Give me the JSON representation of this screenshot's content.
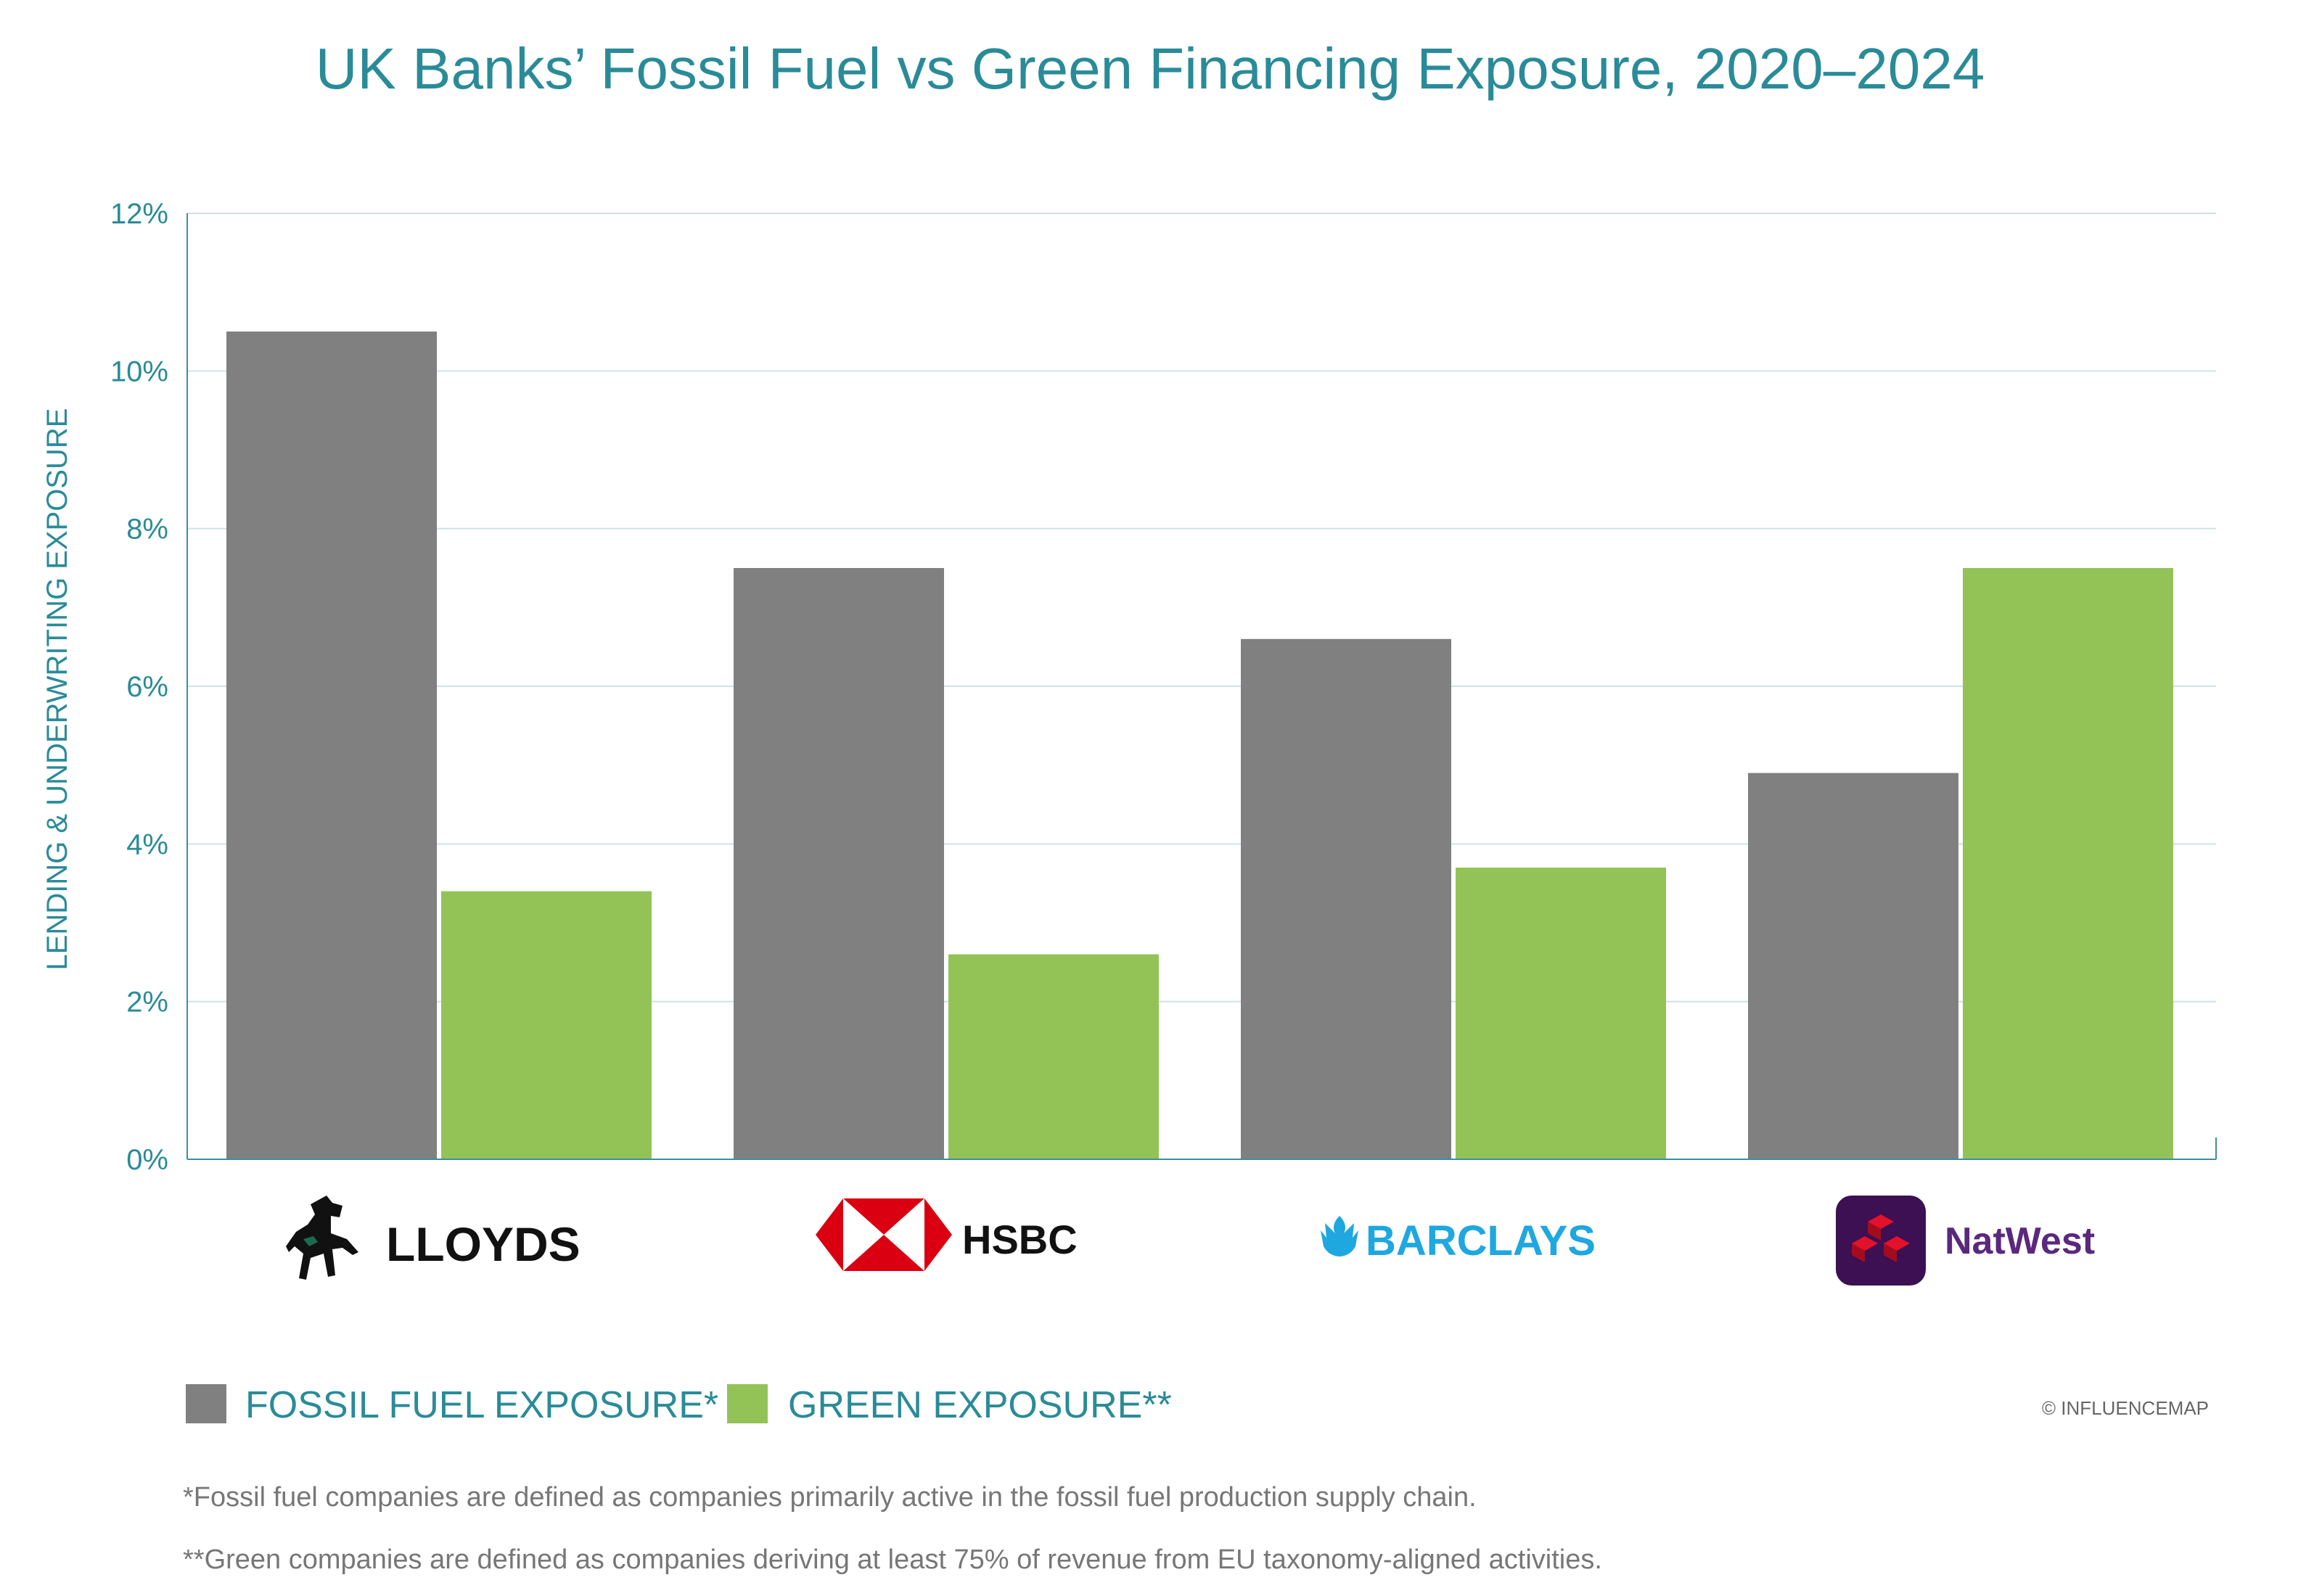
{
  "chart_data": {
    "type": "bar",
    "title": "UK Banks’ Fossil Fuel vs Green Financing Exposure, 2020–2024",
    "ylabel": "LENDING & UNDERWRITING EXPOSURE",
    "xlabel": "",
    "categories": [
      "LLOYDS",
      "HSBC",
      "BARCLAYS",
      "NatWest"
    ],
    "series": [
      {
        "name": "FOSSIL FUEL EXPOSURE*",
        "values": [
          10.5,
          7.5,
          6.6,
          4.9
        ],
        "color": "#808080"
      },
      {
        "name": "GREEN EXPOSURE**",
        "values": [
          3.4,
          2.6,
          3.7,
          7.5
        ],
        "color": "#93c356"
      }
    ],
    "ylim": [
      0,
      12
    ],
    "yticks": [
      "0%",
      "2%",
      "4%",
      "6%",
      "8%",
      "10%",
      "12%"
    ],
    "ytick_values": [
      0,
      2,
      4,
      6,
      8,
      10,
      12
    ],
    "grid": true,
    "legend_position": "bottom-left",
    "copyright": "© INFLUENCEMAP",
    "footnotes": [
      "*Fossil fuel companies are defined as companies primarily active in the fossil fuel production supply chain.",
      "**Green companies are defined as companies deriving at least 75% of revenue from EU taxonomy-aligned activities."
    ],
    "colors": {
      "accent": "#2a8b98",
      "grid": "#cde3e6",
      "axis": "#3a8fa0"
    },
    "logos": [
      {
        "name": "LLOYDS",
        "icon": "black-horse-icon",
        "color": "#111111"
      },
      {
        "name": "HSBC",
        "icon": "hexagon-icon",
        "color": "#db0011"
      },
      {
        "name": "BARCLAYS",
        "icon": "eagle-icon",
        "color": "#1fa7df"
      },
      {
        "name": "NatWest",
        "icon": "cubes-icon",
        "color": "#5a287d"
      }
    ]
  }
}
